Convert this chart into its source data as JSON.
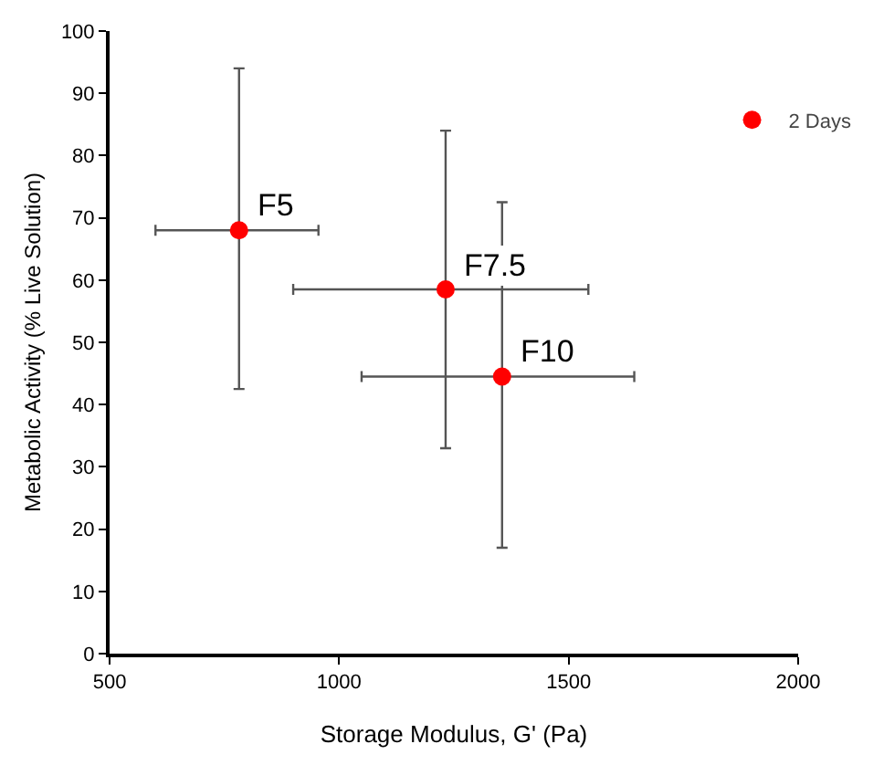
{
  "chart_data": {
    "type": "scatter",
    "xlabel": "Storage Modulus, G' (Pa)",
    "ylabel": "Metabolic Activity (% Live Solution)",
    "xlim": [
      500,
      2000
    ],
    "xticks": [
      500,
      1000,
      1500,
      2000
    ],
    "ylim": [
      0,
      100
    ],
    "yticks": [
      0,
      10,
      20,
      30,
      40,
      50,
      60,
      70,
      80,
      90,
      100
    ],
    "legend": "top right",
    "marker": "circle",
    "series": [
      {
        "name": "2 Days",
        "color": "#ff0000",
        "x": [
          782,
          1232,
          1355
        ],
        "values": [
          68,
          58.5,
          44.5
        ],
        "errors": [
          [
            42.5,
            94
          ],
          [
            33,
            84
          ],
          [
            17,
            72.5
          ]
        ],
        "xerrors": [
          [
            600,
            955
          ],
          [
            900,
            1543
          ],
          [
            1049,
            1643
          ]
        ]
      }
    ],
    "annotations": [
      {
        "text": "F5",
        "x": 782,
        "y": 68
      },
      {
        "text": "F7.5",
        "x": 1232,
        "y": 58.5
      },
      {
        "text": "F10",
        "x": 1355,
        "y": 44.5
      }
    ]
  }
}
